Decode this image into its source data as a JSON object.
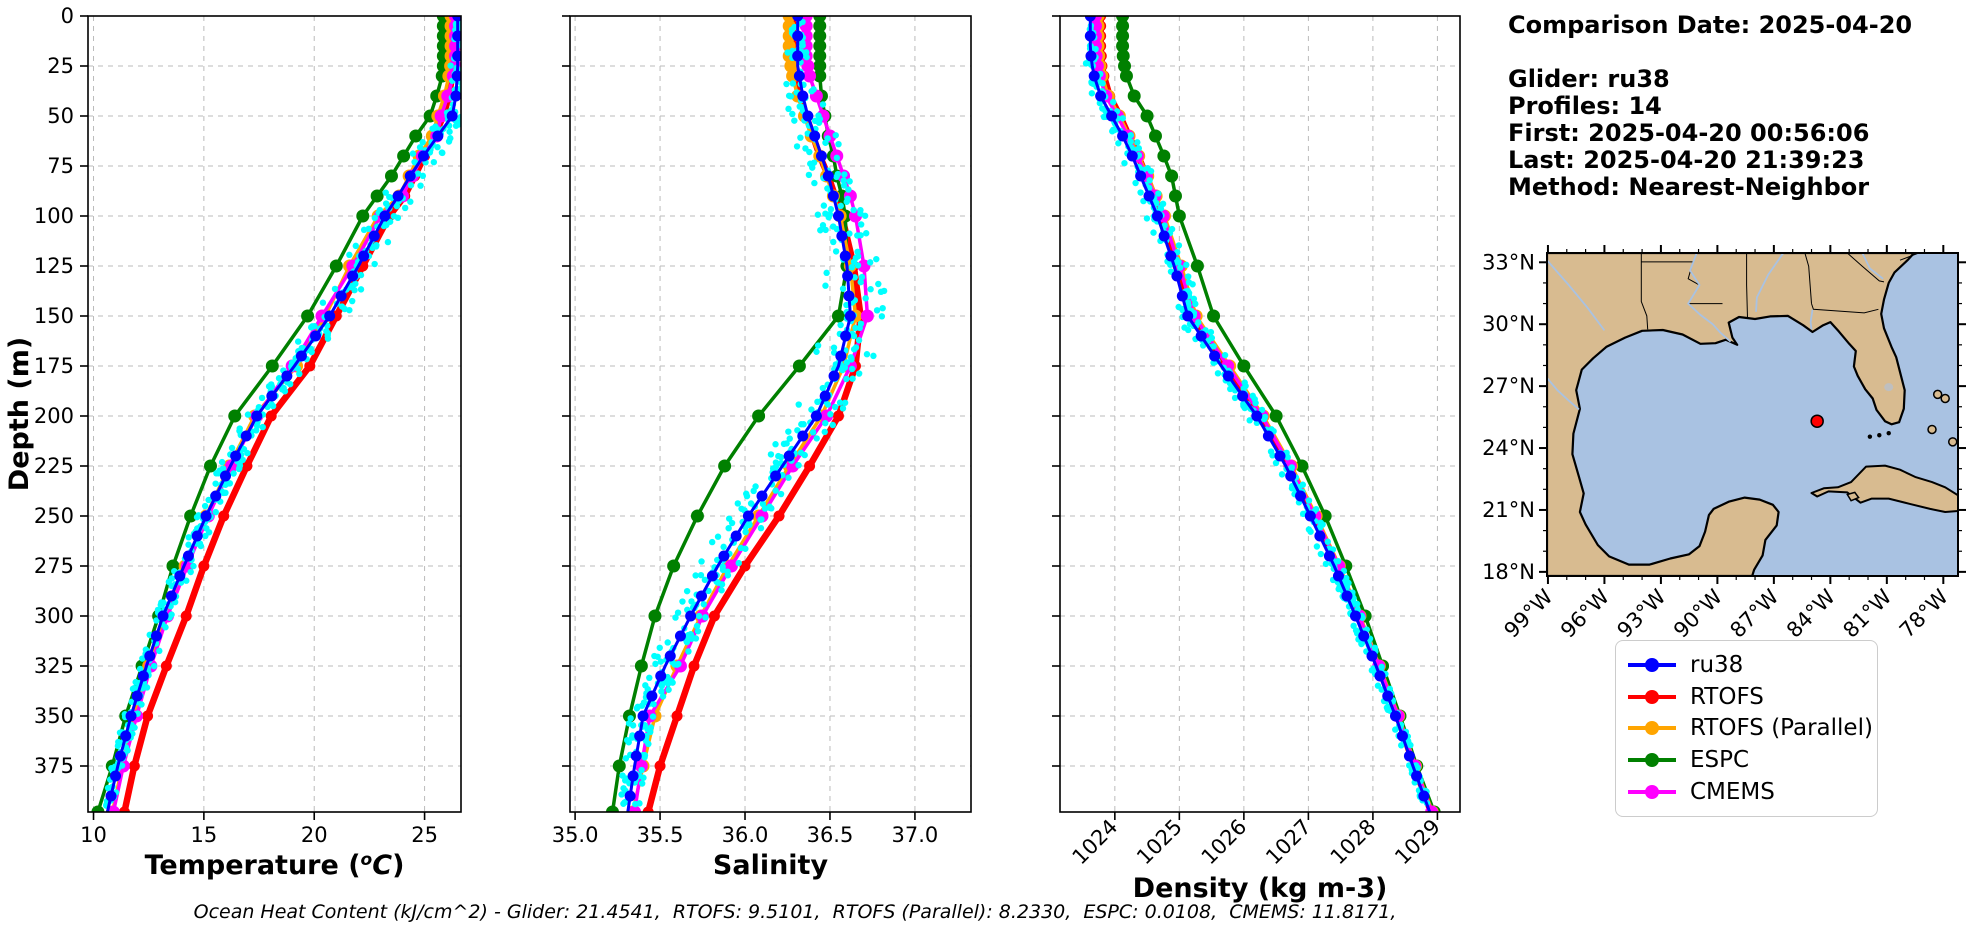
{
  "header": {
    "comparison_date": "Comparison Date: 2025-04-20",
    "glider": "Glider: ru38",
    "profiles": "Profiles: 14",
    "first": "First: 2025-04-20 00:56:06",
    "last": "Last: 2025-04-20 21:39:23",
    "method": "Method: Nearest-Neighbor"
  },
  "footer": {
    "ohc_text": "Ocean Heat Content (kJ/cm^2) - Glider: 21.4541,  RTOFS: 9.5101,  RTOFS (Parallel): 8.2330,  ESPC: 0.0108,  CMEMS: 11.8171,"
  },
  "ylabel": "Depth (m)",
  "legend": {
    "entries": [
      {
        "label": "ru38",
        "color": "#0000ff"
      },
      {
        "label": "RTOFS",
        "color": "#ff0000"
      },
      {
        "label": "RTOFS (Parallel)",
        "color": "#ffa500"
      },
      {
        "label": "ESPC",
        "color": "#008000"
      },
      {
        "label": "CMEMS",
        "color": "#ff00ff"
      }
    ]
  },
  "map": {
    "extent": {
      "lon": [
        -99.05,
        -77.22
      ],
      "lat": [
        17.8,
        33.45
      ]
    },
    "lon_ticks": [
      {
        "v": -99,
        "label": "99°W"
      },
      {
        "v": -96,
        "label": "96°W"
      },
      {
        "v": -93,
        "label": "93°W"
      },
      {
        "v": -90,
        "label": "90°W"
      },
      {
        "v": -87,
        "label": "87°W"
      },
      {
        "v": -84,
        "label": "84°W"
      },
      {
        "v": -81,
        "label": "81°W"
      },
      {
        "v": -78,
        "label": "78°W"
      }
    ],
    "lat_ticks": [
      {
        "v": 33,
        "label": "33°N"
      },
      {
        "v": 30,
        "label": "30°N"
      },
      {
        "v": 27,
        "label": "27°N"
      },
      {
        "v": 24,
        "label": "24°N"
      },
      {
        "v": 21,
        "label": "21°N"
      },
      {
        "v": 18,
        "label": "18°N"
      }
    ],
    "land_color": "#d8bb90",
    "water_color": "#a9c2e2",
    "lake_color": "#bfbfbf",
    "coast_color": "#000000",
    "glider_marker": {
      "lon": -84.7,
      "lat": 25.3,
      "color": "#ff0000"
    }
  },
  "chart_data": [
    {
      "type": "line",
      "panel": "temperature",
      "xlabel": {
        "pre": "Temperature (",
        "sup": "o",
        "it": "C",
        "post": ")"
      },
      "xlim": [
        9.75,
        26.65
      ],
      "xticks": [
        {
          "v": 10,
          "label": "10"
        },
        {
          "v": 15,
          "label": "15"
        },
        {
          "v": 20,
          "label": "20"
        },
        {
          "v": 25,
          "label": "25"
        }
      ],
      "rotate_xticks": false,
      "show_ylabels": true,
      "ylim": [
        0,
        398
      ],
      "yticks": [
        0,
        25,
        50,
        75,
        100,
        125,
        150,
        175,
        200,
        225,
        250,
        275,
        300,
        325,
        350,
        375
      ],
      "depths": [
        0,
        5,
        10,
        15,
        20,
        25,
        30,
        40,
        50,
        60,
        70,
        80,
        90,
        100,
        125,
        150,
        175,
        200,
        225,
        250,
        275,
        300,
        325,
        350,
        375,
        398
      ],
      "series": [
        {
          "name": "RTOFS",
          "color": "#ff0000",
          "width": 6.5,
          "marker_radius": 5.5,
          "marker_step": 0,
          "values": [
            26.3,
            26.3,
            26.3,
            26.3,
            26.3,
            26.28,
            26.25,
            26.1,
            25.85,
            25.45,
            25.0,
            24.55,
            24.1,
            23.4,
            22.2,
            21.0,
            19.8,
            18.05,
            16.95,
            15.9,
            15.0,
            14.2,
            13.3,
            12.45,
            11.85,
            11.4
          ]
        },
        {
          "name": "ESPC",
          "color": "#008000",
          "width": 3.5,
          "marker_radius": 6.5,
          "marker_step": 0,
          "values": [
            25.85,
            25.85,
            25.85,
            25.85,
            25.85,
            25.85,
            25.8,
            25.55,
            25.25,
            24.6,
            24.05,
            23.5,
            22.85,
            22.2,
            21.0,
            19.7,
            18.1,
            16.4,
            15.3,
            14.4,
            13.6,
            12.95,
            12.2,
            11.46,
            10.85,
            10.2
          ]
        },
        {
          "name": "RTOFS (Parallel)",
          "color": "#ffa500",
          "width": 3.5,
          "marker_radius": 6.5,
          "marker_step": 0,
          "values": [
            26.2,
            26.2,
            26.2,
            26.2,
            26.2,
            26.18,
            26.1,
            25.9,
            25.6,
            25.35,
            24.75,
            24.3,
            23.85,
            22.9,
            21.6,
            20.5,
            19.2,
            17.3,
            16.15,
            15.1,
            14.15,
            13.25,
            12.5,
            11.85,
            11.3,
            10.86
          ]
        },
        {
          "name": "CMEMS",
          "color": "#ff00ff",
          "width": 3.5,
          "marker_radius": 6.5,
          "marker_step": 0,
          "values": [
            26.4,
            26.4,
            26.4,
            26.4,
            26.4,
            26.38,
            26.3,
            26.05,
            25.75,
            25.55,
            24.9,
            24.45,
            24.0,
            23.0,
            21.75,
            20.35,
            19.0,
            17.4,
            16.25,
            15.2,
            14.25,
            13.35,
            12.6,
            11.95,
            11.35,
            10.9
          ]
        },
        {
          "name": "ru38",
          "color": "#0000ff",
          "width": 3,
          "marker_radius": 5.5,
          "marker_step": 10,
          "values": [
            26.5,
            26.5,
            26.5,
            26.5,
            26.5,
            26.5,
            26.48,
            26.42,
            26.25,
            25.6,
            24.95,
            24.35,
            23.8,
            23.2,
            22.0,
            20.7,
            19.1,
            17.4,
            16.2,
            15.1,
            14.1,
            13.15,
            12.4,
            11.7,
            11.1,
            10.63
          ]
        }
      ],
      "scatter": {
        "name": "glider-raw-points",
        "color": "#00ffff",
        "count": 400,
        "seed": 11,
        "noise": 0.5,
        "noise_surface": 0.1,
        "bias": 0.4,
        "bias_center": 110,
        "bias_width": 70,
        "radius": 3.2
      }
    },
    {
      "type": "line",
      "panel": "salinity",
      "xlabel": {
        "pre": "Salinity"
      },
      "xlim": [
        34.97,
        37.33
      ],
      "xticks": [
        {
          "v": 35.0,
          "label": "35.0"
        },
        {
          "v": 35.5,
          "label": "35.5"
        },
        {
          "v": 36.0,
          "label": "36.0"
        },
        {
          "v": 36.5,
          "label": "36.5"
        },
        {
          "v": 37.0,
          "label": "37.0"
        }
      ],
      "rotate_xticks": false,
      "show_ylabels": false,
      "ylim": [
        0,
        398
      ],
      "yticks": [
        0,
        25,
        50,
        75,
        100,
        125,
        150,
        175,
        200,
        225,
        250,
        275,
        300,
        325,
        350,
        375
      ],
      "depths": [
        0,
        5,
        10,
        15,
        20,
        25,
        30,
        40,
        50,
        60,
        70,
        80,
        90,
        100,
        125,
        150,
        175,
        200,
        225,
        250,
        275,
        300,
        325,
        350,
        375,
        398
      ],
      "series": [
        {
          "name": "RTOFS",
          "color": "#ff0000",
          "width": 6.5,
          "marker_radius": 5.5,
          "marker_step": 0,
          "values": [
            36.28,
            36.28,
            36.28,
            36.28,
            36.28,
            36.28,
            36.29,
            36.32,
            36.36,
            36.4,
            36.44,
            36.49,
            36.53,
            36.57,
            36.64,
            36.68,
            36.65,
            36.55,
            36.38,
            36.2,
            36.0,
            35.82,
            35.7,
            35.6,
            35.5,
            35.43
          ]
        },
        {
          "name": "ESPC",
          "color": "#008000",
          "width": 3.5,
          "marker_radius": 6.5,
          "marker_step": 0,
          "values": [
            36.44,
            36.44,
            36.44,
            36.44,
            36.44,
            36.44,
            36.44,
            36.45,
            36.47,
            36.49,
            36.52,
            36.54,
            36.57,
            36.59,
            36.6,
            36.55,
            36.32,
            36.08,
            35.88,
            35.72,
            35.58,
            35.47,
            35.39,
            35.32,
            35.26,
            35.22
          ]
        },
        {
          "name": "RTOFS (Parallel)",
          "color": "#ffa500",
          "width": 3.5,
          "marker_radius": 6.5,
          "marker_step": 0,
          "values": [
            36.26,
            36.26,
            36.26,
            36.26,
            36.26,
            36.27,
            36.28,
            36.31,
            36.35,
            36.39,
            36.44,
            36.48,
            36.52,
            36.56,
            36.62,
            36.65,
            36.58,
            36.45,
            36.26,
            36.08,
            35.9,
            35.74,
            35.6,
            35.47,
            35.4,
            35.34
          ]
        },
        {
          "name": "CMEMS",
          "color": "#ff00ff",
          "width": 3.5,
          "marker_radius": 6.5,
          "marker_step": 0,
          "values": [
            36.36,
            36.36,
            36.36,
            36.36,
            36.36,
            36.37,
            36.38,
            36.42,
            36.46,
            36.5,
            36.54,
            36.58,
            36.62,
            36.65,
            36.7,
            36.72,
            36.62,
            36.48,
            36.28,
            36.1,
            35.92,
            35.75,
            35.62,
            35.44,
            35.39,
            35.35
          ]
        },
        {
          "name": "ru38",
          "color": "#0000ff",
          "width": 3,
          "marker_radius": 5.5,
          "marker_step": 10,
          "values": [
            36.31,
            36.31,
            36.31,
            36.31,
            36.31,
            36.31,
            36.32,
            36.34,
            36.37,
            36.41,
            36.45,
            36.49,
            36.52,
            36.55,
            36.6,
            36.62,
            36.55,
            36.42,
            36.22,
            36.02,
            35.84,
            35.68,
            35.53,
            35.4,
            35.35,
            35.31
          ]
        }
      ],
      "scatter": {
        "name": "glider-raw-points",
        "color": "#00ffff",
        "count": 400,
        "seed": 22,
        "noise": 0.13,
        "noise_surface": 0.03,
        "bias": 0.1,
        "bias_center": 145,
        "bias_width": 45,
        "radius": 3.2
      }
    },
    {
      "type": "line",
      "panel": "density",
      "xlabel": {
        "pre": "Density (kg m-3)"
      },
      "xlim": [
        1023.15,
        1029.35
      ],
      "xticks": [
        {
          "v": 1024,
          "label": "1024"
        },
        {
          "v": 1025,
          "label": "1025"
        },
        {
          "v": 1026,
          "label": "1026"
        },
        {
          "v": 1027,
          "label": "1027"
        },
        {
          "v": 1028,
          "label": "1028"
        },
        {
          "v": 1029,
          "label": "1029"
        }
      ],
      "rotate_xticks": true,
      "show_ylabels": false,
      "ylim": [
        0,
        398
      ],
      "yticks": [
        0,
        25,
        50,
        75,
        100,
        125,
        150,
        175,
        200,
        225,
        250,
        275,
        300,
        325,
        350,
        375
      ],
      "depths": [
        0,
        5,
        10,
        15,
        20,
        25,
        30,
        40,
        50,
        60,
        70,
        80,
        90,
        100,
        125,
        150,
        175,
        200,
        225,
        250,
        275,
        300,
        325,
        350,
        375,
        398
      ],
      "series": [
        {
          "name": "RTOFS",
          "color": "#ff0000",
          "width": 6.5,
          "marker_radius": 5.5,
          "marker_step": 0,
          "values": [
            1023.78,
            1023.78,
            1023.78,
            1023.78,
            1023.79,
            1023.8,
            1023.83,
            1023.92,
            1024.08,
            1024.22,
            1024.36,
            1024.49,
            1024.61,
            1024.73,
            1024.98,
            1025.2,
            1025.72,
            1026.25,
            1026.7,
            1027.08,
            1027.45,
            1027.77,
            1028.08,
            1028.38,
            1028.64,
            1028.9
          ]
        },
        {
          "name": "ESPC",
          "color": "#008000",
          "width": 3.5,
          "marker_radius": 6.5,
          "marker_step": 0,
          "values": [
            1024.12,
            1024.12,
            1024.12,
            1024.12,
            1024.13,
            1024.15,
            1024.18,
            1024.3,
            1024.5,
            1024.63,
            1024.76,
            1024.88,
            1024.94,
            1025.0,
            1025.28,
            1025.53,
            1026.0,
            1026.5,
            1026.9,
            1027.26,
            1027.58,
            1027.88,
            1028.15,
            1028.42,
            1028.68,
            1028.95
          ]
        },
        {
          "name": "RTOFS (Parallel)",
          "color": "#ffa500",
          "width": 3.5,
          "marker_radius": 6.5,
          "marker_step": 0,
          "values": [
            1023.74,
            1023.74,
            1023.74,
            1023.74,
            1023.75,
            1023.77,
            1023.8,
            1023.9,
            1024.07,
            1024.22,
            1024.37,
            1024.51,
            1024.64,
            1024.77,
            1025.03,
            1025.26,
            1025.78,
            1026.3,
            1026.74,
            1027.12,
            1027.48,
            1027.8,
            1028.1,
            1028.4,
            1028.66,
            1028.92
          ]
        },
        {
          "name": "CMEMS",
          "color": "#ff00ff",
          "width": 3.5,
          "marker_radius": 6.5,
          "marker_step": 0,
          "values": [
            1023.7,
            1023.7,
            1023.7,
            1023.7,
            1023.71,
            1023.73,
            1023.76,
            1023.86,
            1024.04,
            1024.2,
            1024.35,
            1024.49,
            1024.62,
            1024.75,
            1025.0,
            1025.23,
            1025.75,
            1026.28,
            1026.72,
            1027.1,
            1027.47,
            1027.79,
            1028.09,
            1028.39,
            1028.65,
            1028.91
          ]
        },
        {
          "name": "ru38",
          "color": "#0000ff",
          "width": 3,
          "marker_radius": 5.5,
          "marker_step": 10,
          "values": [
            1023.62,
            1023.62,
            1023.62,
            1023.62,
            1023.63,
            1023.65,
            1023.68,
            1023.78,
            1023.95,
            1024.12,
            1024.27,
            1024.4,
            1024.53,
            1024.66,
            1024.92,
            1025.13,
            1025.65,
            1026.2,
            1026.65,
            1027.03,
            1027.4,
            1027.73,
            1028.05,
            1028.35,
            1028.62,
            1028.88
          ]
        }
      ],
      "scatter": {
        "name": "glider-raw-points",
        "color": "#00ffff",
        "count": 380,
        "seed": 33,
        "noise": 0.14,
        "noise_surface": 0.04,
        "bias": 0.08,
        "bias_center": 120,
        "bias_width": 80,
        "radius": 3.2
      }
    }
  ]
}
